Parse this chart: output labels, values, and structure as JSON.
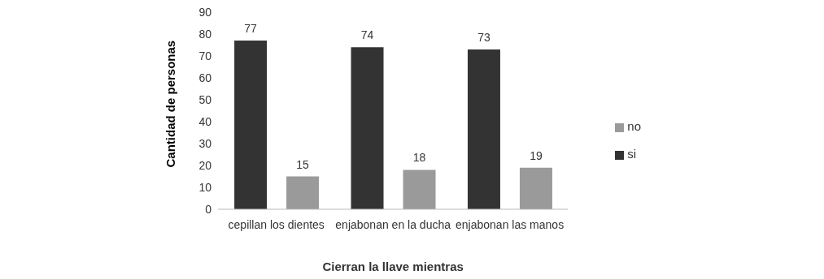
{
  "chart_data": {
    "type": "bar",
    "xlabel": "Cierran la llave mientras",
    "ylabel": "Cantidad de personas",
    "categories": [
      "cepillan los dientes",
      "enjabonan en la ducha",
      "enjabonan las manos"
    ],
    "series": [
      {
        "name": "si",
        "color": "#333333",
        "values": [
          77,
          74,
          73
        ]
      },
      {
        "name": "no",
        "color": "#9a9a9a",
        "values": [
          15,
          18,
          19
        ]
      }
    ],
    "ylim": [
      0,
      90
    ],
    "yticks": [
      0,
      10,
      20,
      30,
      40,
      50,
      60,
      70,
      80,
      90
    ],
    "grid": false,
    "legend": "right",
    "data_labels": true
  }
}
